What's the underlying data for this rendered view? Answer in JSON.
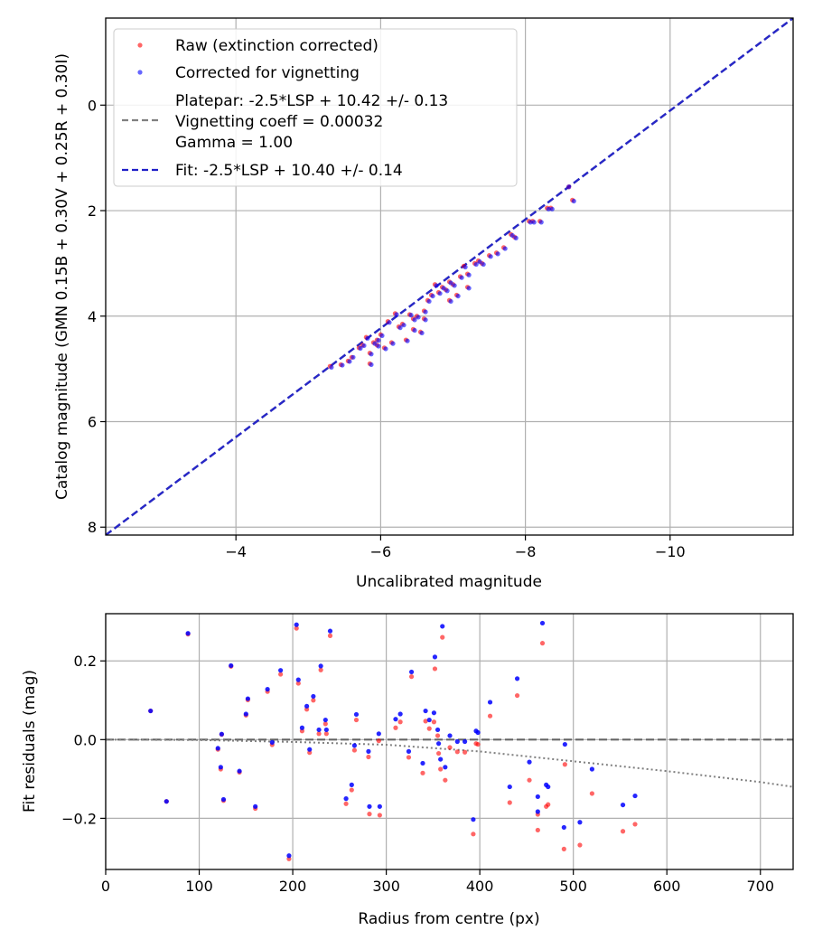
{
  "chart_data": [
    {
      "type": "scatter",
      "xlabel": "Uncalibrated magnitude",
      "ylabel": "Catalog magnitude (GMN 0.15B + 0.30V + 0.25R + 0.30I)",
      "xlim": [
        -2.2,
        -11.7
      ],
      "ylim": [
        8.15,
        -1.65
      ],
      "x_inverted": true,
      "y_inverted": true,
      "xticks": [
        -4,
        -6,
        -8,
        -10
      ],
      "xtick_labels": [
        "−4",
        "−6",
        "−8",
        "−10"
      ],
      "yticks": [
        0,
        2,
        4,
        6,
        8
      ],
      "ytick_labels": [
        "0",
        "2",
        "4",
        "6",
        "8"
      ],
      "grid": true,
      "legend_position": "top-left",
      "legend": {
        "raw": "Raw (extinction corrected)",
        "corrected": "Corrected for vignetting",
        "platepar_lines": [
          "Platepar: -2.5*LSP + 10.42 +/- 0.13",
          "Vignetting coeff = 0.00032",
          "Gamma = 1.00"
        ],
        "fit": "Fit: -2.5*LSP + 10.40 +/- 0.14"
      },
      "colors": {
        "raw": "#ff0000",
        "corrected": "#0000ff",
        "platepar_line": "#808080",
        "fit_line": "#2020c8"
      },
      "lines": [
        {
          "name": "platepar",
          "points": [
            [
              -2.2,
              8.15
            ],
            [
              -11.7,
              -1.65
            ]
          ]
        },
        {
          "name": "fit",
          "points": [
            [
              -2.2,
              8.15
            ],
            [
              -11.7,
              -1.65
            ]
          ]
        }
      ],
      "raw_points": [
        [
          -5.3,
          4.95
        ],
        [
          -5.45,
          4.92
        ],
        [
          -5.55,
          4.85
        ],
        [
          -5.6,
          4.78
        ],
        [
          -5.7,
          4.6
        ],
        [
          -5.75,
          4.55
        ],
        [
          -5.8,
          4.4
        ],
        [
          -5.85,
          4.7
        ],
        [
          -5.9,
          4.5
        ],
        [
          -5.95,
          4.45
        ],
        [
          -6.0,
          4.35
        ],
        [
          -6.05,
          4.6
        ],
        [
          -6.1,
          4.1
        ],
        [
          -6.15,
          4.5
        ],
        [
          -6.2,
          3.95
        ],
        [
          -6.25,
          4.2
        ],
        [
          -6.3,
          4.15
        ],
        [
          -6.35,
          4.45
        ],
        [
          -6.4,
          3.97
        ],
        [
          -6.45,
          4.05
        ],
        [
          -6.5,
          4.0
        ],
        [
          -6.55,
          4.3
        ],
        [
          -6.6,
          3.9
        ],
        [
          -6.65,
          3.7
        ],
        [
          -6.7,
          3.6
        ],
        [
          -6.75,
          3.4
        ],
        [
          -6.8,
          3.55
        ],
        [
          -6.85,
          3.45
        ],
        [
          -6.9,
          3.5
        ],
        [
          -6.95,
          3.35
        ],
        [
          -7.0,
          3.4
        ],
        [
          -7.1,
          3.25
        ],
        [
          -7.15,
          3.05
        ],
        [
          -7.2,
          3.2
        ],
        [
          -7.3,
          3.0
        ],
        [
          -7.35,
          2.95
        ],
        [
          -7.4,
          3.0
        ],
        [
          -7.5,
          2.85
        ],
        [
          -7.6,
          2.8
        ],
        [
          -7.7,
          2.7
        ],
        [
          -7.8,
          2.45
        ],
        [
          -7.85,
          2.5
        ],
        [
          -8.05,
          2.2
        ],
        [
          -8.1,
          2.2
        ],
        [
          -8.2,
          2.2
        ],
        [
          -8.3,
          1.95
        ],
        [
          -8.35,
          1.95
        ],
        [
          -8.6,
          1.55
        ],
        [
          -8.65,
          1.8
        ],
        [
          -5.85,
          4.9
        ],
        [
          -6.45,
          4.25
        ],
        [
          -7.2,
          3.45
        ],
        [
          -7.05,
          3.6
        ],
        [
          -6.95,
          3.7
        ],
        [
          -5.95,
          4.55
        ],
        [
          -6.6,
          4.05
        ]
      ],
      "corrected_points": [
        [
          -5.32,
          4.97
        ],
        [
          -5.47,
          4.93
        ],
        [
          -5.57,
          4.86
        ],
        [
          -5.62,
          4.78
        ],
        [
          -5.72,
          4.61
        ],
        [
          -5.77,
          4.56
        ],
        [
          -5.82,
          4.42
        ],
        [
          -5.87,
          4.72
        ],
        [
          -5.92,
          4.52
        ],
        [
          -5.97,
          4.46
        ],
        [
          -6.02,
          4.37
        ],
        [
          -6.07,
          4.62
        ],
        [
          -6.12,
          4.12
        ],
        [
          -6.17,
          4.52
        ],
        [
          -6.22,
          3.97
        ],
        [
          -6.27,
          4.22
        ],
        [
          -6.32,
          4.17
        ],
        [
          -6.37,
          4.47
        ],
        [
          -6.42,
          3.98
        ],
        [
          -6.47,
          4.07
        ],
        [
          -6.52,
          4.02
        ],
        [
          -6.57,
          4.32
        ],
        [
          -6.62,
          3.92
        ],
        [
          -6.67,
          3.72
        ],
        [
          -6.72,
          3.62
        ],
        [
          -6.77,
          3.42
        ],
        [
          -6.82,
          3.57
        ],
        [
          -6.87,
          3.47
        ],
        [
          -6.92,
          3.52
        ],
        [
          -6.97,
          3.37
        ],
        [
          -7.02,
          3.42
        ],
        [
          -7.12,
          3.27
        ],
        [
          -7.17,
          3.07
        ],
        [
          -7.22,
          3.22
        ],
        [
          -7.32,
          3.02
        ],
        [
          -7.37,
          2.97
        ],
        [
          -7.42,
          3.02
        ],
        [
          -7.52,
          2.87
        ],
        [
          -7.62,
          2.82
        ],
        [
          -7.72,
          2.72
        ],
        [
          -7.82,
          2.47
        ],
        [
          -7.87,
          2.52
        ],
        [
          -8.07,
          2.22
        ],
        [
          -8.12,
          2.22
        ],
        [
          -8.22,
          2.22
        ],
        [
          -8.32,
          1.97
        ],
        [
          -8.37,
          1.97
        ],
        [
          -8.6,
          1.55
        ],
        [
          -8.67,
          1.82
        ],
        [
          -5.87,
          4.92
        ],
        [
          -6.47,
          4.27
        ],
        [
          -7.22,
          3.47
        ],
        [
          -7.07,
          3.62
        ],
        [
          -6.97,
          3.72
        ],
        [
          -5.97,
          4.57
        ],
        [
          -6.62,
          4.07
        ]
      ]
    },
    {
      "type": "scatter",
      "xlabel": "Radius from centre (px)",
      "ylabel": "Fit residuals (mag)",
      "xlim": [
        0,
        735
      ],
      "ylim": [
        -0.33,
        0.32
      ],
      "xticks": [
        0,
        100,
        200,
        300,
        400,
        500,
        600,
        700
      ],
      "xtick_labels": [
        "0",
        "100",
        "200",
        "300",
        "400",
        "500",
        "600",
        "700"
      ],
      "yticks": [
        -0.2,
        0,
        0.2
      ],
      "ytick_labels": [
        "−0.2",
        "0.0",
        "0.2"
      ],
      "grid": true,
      "colors": {
        "raw": "#ff0000",
        "corrected": "#0000ff",
        "zero_line": "#555555",
        "vignetting_curve": "#808080"
      },
      "zero_line_y": 0,
      "vignetting_curve": [
        [
          0,
          0
        ],
        [
          100,
          -0.001
        ],
        [
          200,
          -0.006
        ],
        [
          300,
          -0.013
        ],
        [
          400,
          -0.03
        ],
        [
          500,
          -0.055
        ],
        [
          600,
          -0.08
        ],
        [
          700,
          -0.108
        ],
        [
          735,
          -0.12
        ]
      ],
      "raw_points": [
        [
          48,
          0.073
        ],
        [
          65,
          -0.157
        ],
        [
          88,
          0.268
        ],
        [
          120,
          -0.025
        ],
        [
          123,
          -0.075
        ],
        [
          124,
          0.013
        ],
        [
          126,
          -0.155
        ],
        [
          134,
          0.186
        ],
        [
          143,
          -0.083
        ],
        [
          150,
          0.062
        ],
        [
          152,
          0.101
        ],
        [
          160,
          -0.175
        ],
        [
          173,
          0.122
        ],
        [
          178,
          -0.013
        ],
        [
          187,
          0.166
        ],
        [
          196,
          -0.303
        ],
        [
          204,
          0.283
        ],
        [
          206,
          0.143
        ],
        [
          210,
          0.022
        ],
        [
          215,
          0.077
        ],
        [
          218,
          -0.033
        ],
        [
          222,
          0.1
        ],
        [
          228,
          0.015
        ],
        [
          230,
          0.177
        ],
        [
          235,
          0.04
        ],
        [
          236,
          0.015
        ],
        [
          240,
          0.264
        ],
        [
          257,
          -0.163
        ],
        [
          263,
          -0.128
        ],
        [
          266,
          -0.027
        ],
        [
          268,
          0.05
        ],
        [
          281,
          -0.044
        ],
        [
          282,
          -0.189
        ],
        [
          292,
          -0.003
        ],
        [
          293,
          -0.192
        ],
        [
          310,
          0.03
        ],
        [
          315,
          0.045
        ],
        [
          324,
          -0.045
        ],
        [
          327,
          0.16
        ],
        [
          339,
          -0.085
        ],
        [
          342,
          0.047
        ],
        [
          346,
          0.028
        ],
        [
          351,
          0.045
        ],
        [
          352,
          0.18
        ],
        [
          355,
          0.01
        ],
        [
          356,
          -0.035
        ],
        [
          358,
          -0.075
        ],
        [
          360,
          0.26
        ],
        [
          363,
          -0.103
        ],
        [
          368,
          -0.02
        ],
        [
          376,
          -0.031
        ],
        [
          384,
          -0.032
        ],
        [
          393,
          -0.24
        ],
        [
          396,
          -0.01
        ],
        [
          398,
          -0.012
        ],
        [
          411,
          0.06
        ],
        [
          432,
          -0.16
        ],
        [
          440,
          0.112
        ],
        [
          453,
          -0.103
        ],
        [
          462,
          -0.23
        ],
        [
          462,
          -0.19
        ],
        [
          467,
          0.245
        ],
        [
          471,
          -0.17
        ],
        [
          473,
          -0.165
        ],
        [
          490,
          -0.278
        ],
        [
          491,
          -0.063
        ],
        [
          507,
          -0.268
        ],
        [
          520,
          -0.137
        ],
        [
          553,
          -0.233
        ],
        [
          566,
          -0.215
        ]
      ],
      "corrected_points": [
        [
          48,
          0.073
        ],
        [
          65,
          -0.157
        ],
        [
          88,
          0.27
        ],
        [
          120,
          -0.022
        ],
        [
          123,
          -0.07
        ],
        [
          124,
          0.014
        ],
        [
          126,
          -0.152
        ],
        [
          134,
          0.188
        ],
        [
          143,
          -0.08
        ],
        [
          150,
          0.065
        ],
        [
          152,
          0.104
        ],
        [
          160,
          -0.17
        ],
        [
          173,
          0.128
        ],
        [
          178,
          -0.007
        ],
        [
          187,
          0.176
        ],
        [
          196,
          -0.295
        ],
        [
          204,
          0.292
        ],
        [
          206,
          0.152
        ],
        [
          210,
          0.03
        ],
        [
          215,
          0.085
        ],
        [
          218,
          -0.025
        ],
        [
          222,
          0.11
        ],
        [
          228,
          0.025
        ],
        [
          230,
          0.187
        ],
        [
          235,
          0.05
        ],
        [
          236,
          0.025
        ],
        [
          240,
          0.276
        ],
        [
          257,
          -0.15
        ],
        [
          263,
          -0.115
        ],
        [
          266,
          -0.015
        ],
        [
          268,
          0.064
        ],
        [
          281,
          -0.03
        ],
        [
          282,
          -0.17
        ],
        [
          292,
          0.015
        ],
        [
          293,
          -0.17
        ],
        [
          310,
          0.052
        ],
        [
          315,
          0.065
        ],
        [
          324,
          -0.03
        ],
        [
          327,
          0.172
        ],
        [
          339,
          -0.06
        ],
        [
          342,
          0.073
        ],
        [
          346,
          0.05
        ],
        [
          351,
          0.068
        ],
        [
          352,
          0.21
        ],
        [
          355,
          0.025
        ],
        [
          356,
          -0.01
        ],
        [
          358,
          -0.05
        ],
        [
          360,
          0.288
        ],
        [
          363,
          -0.07
        ],
        [
          368,
          0.01
        ],
        [
          376,
          -0.005
        ],
        [
          384,
          -0.005
        ],
        [
          393,
          -0.203
        ],
        [
          396,
          0.022
        ],
        [
          398,
          0.018
        ],
        [
          411,
          0.095
        ],
        [
          432,
          -0.12
        ],
        [
          440,
          0.155
        ],
        [
          453,
          -0.057
        ],
        [
          462,
          -0.183
        ],
        [
          462,
          -0.145
        ],
        [
          467,
          0.296
        ],
        [
          471,
          -0.115
        ],
        [
          473,
          -0.12
        ],
        [
          490,
          -0.223
        ],
        [
          491,
          -0.012
        ],
        [
          507,
          -0.21
        ],
        [
          520,
          -0.075
        ],
        [
          553,
          -0.166
        ],
        [
          566,
          -0.143
        ]
      ]
    }
  ]
}
